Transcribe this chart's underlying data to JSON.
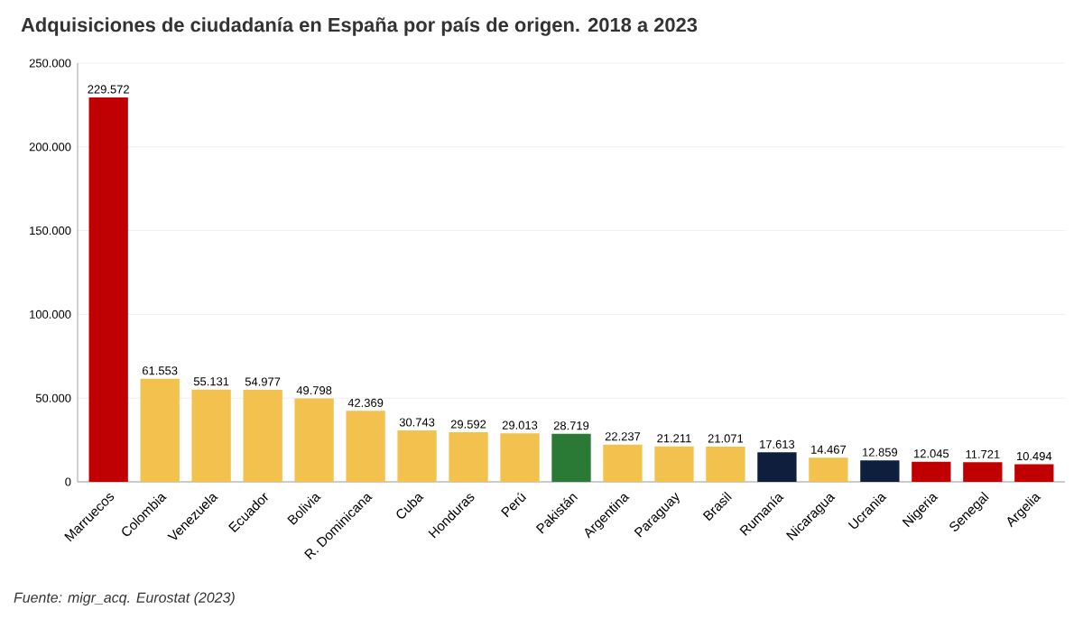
{
  "chart_data": {
    "type": "bar",
    "title": "Adquisiciones de ciudadanía en España por país de origen. 2018 a 2023",
    "categories": [
      "Marruecos",
      "Colombia",
      "Venezuela",
      "Ecuador",
      "Bolivia",
      "R. Dominicana",
      "Cuba",
      "Honduras",
      "Perú",
      "Pakistán",
      "Argentina",
      "Paraguay",
      "Brasil",
      "Rumanía",
      "Nicaragua",
      "Ucrania",
      "Nigeria",
      "Senegal",
      "Argelia"
    ],
    "values": [
      229572,
      61553,
      55131,
      54977,
      49798,
      42369,
      30743,
      29592,
      29013,
      28719,
      22237,
      21211,
      21071,
      17613,
      14467,
      12859,
      12045,
      11721,
      10494
    ],
    "value_labels": [
      "229.572",
      "61.553",
      "55.131",
      "54.977",
      "49.798",
      "42.369",
      "30.743",
      "29.592",
      "29.013",
      "28.719",
      "22.237",
      "21.211",
      "21.071",
      "17.613",
      "14.467",
      "12.859",
      "12.045",
      "11.721",
      "10.494"
    ],
    "colors": [
      "#c00000",
      "#f2c14e",
      "#f2c14e",
      "#f2c14e",
      "#f2c14e",
      "#f2c14e",
      "#f2c14e",
      "#f2c14e",
      "#f2c14e",
      "#2a7a35",
      "#f2c14e",
      "#f2c14e",
      "#f2c14e",
      "#0d1f3c",
      "#f2c14e",
      "#0d1f3c",
      "#c00000",
      "#c00000",
      "#c00000"
    ],
    "ylim": [
      0,
      250000
    ],
    "yticks": [
      {
        "value": 0,
        "label": "0"
      },
      {
        "value": 50000,
        "label": "50.000"
      },
      {
        "value": 100000,
        "label": "100.000"
      },
      {
        "value": 150000,
        "label": "150.000"
      },
      {
        "value": 200000,
        "label": "200.000"
      },
      {
        "value": 250000,
        "label": "250.000"
      }
    ],
    "grid": "y",
    "annotations": [
      "Fuente: migr_acq. Eurostat (2023)"
    ]
  }
}
